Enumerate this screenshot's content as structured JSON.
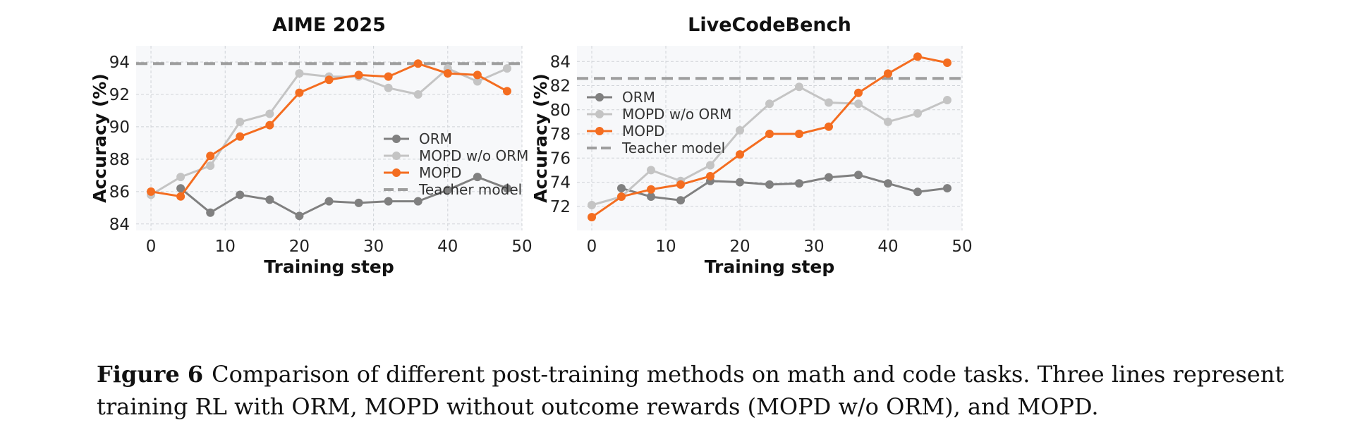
{
  "chart_data": [
    {
      "type": "line",
      "title": "AIME 2025",
      "xlabel": "Training step",
      "ylabel": "Accuracy (%)",
      "xlim": [
        -2,
        50
      ],
      "ylim": [
        83.6,
        95
      ],
      "xticks": [
        0,
        10,
        20,
        30,
        40,
        50
      ],
      "yticks": [
        84,
        86,
        88,
        90,
        92,
        94
      ],
      "grid": true,
      "legend_position": "center-right",
      "teacher": {
        "name": "Teacher model",
        "value": 93.9,
        "color": "#9e9e9e"
      },
      "series": [
        {
          "name": "ORM",
          "color": "#808080",
          "x": [
            4,
            8,
            12,
            16,
            20,
            24,
            28,
            32,
            36,
            40,
            44,
            48
          ],
          "y": [
            86.2,
            84.7,
            85.8,
            85.5,
            84.5,
            85.4,
            85.3,
            85.4,
            85.4,
            86.1,
            86.9,
            86.2
          ]
        },
        {
          "name": "MOPD w/o ORM",
          "color": "#c4c4c4",
          "x": [
            0,
            4,
            8,
            12,
            16,
            20,
            24,
            28,
            32,
            36,
            40,
            44,
            48
          ],
          "y": [
            85.8,
            86.9,
            87.6,
            90.3,
            90.8,
            93.3,
            93.1,
            93.1,
            92.4,
            92.0,
            93.6,
            92.8,
            93.6
          ]
        },
        {
          "name": "MOPD",
          "color": "#f46d20",
          "x": [
            0,
            4,
            8,
            12,
            16,
            20,
            24,
            28,
            32,
            36,
            40,
            44,
            48
          ],
          "y": [
            86.0,
            85.7,
            88.2,
            89.4,
            90.1,
            92.1,
            92.9,
            93.2,
            93.1,
            93.9,
            93.3,
            93.2,
            92.2
          ]
        }
      ]
    },
    {
      "type": "line",
      "title": "LiveCodeBench",
      "xlabel": "Training step",
      "ylabel": "Accuracy (%)",
      "xlim": [
        -2,
        50
      ],
      "ylim": [
        70,
        85.3
      ],
      "xticks": [
        0,
        10,
        20,
        30,
        40,
        50
      ],
      "yticks": [
        72,
        74,
        76,
        78,
        80,
        82,
        84
      ],
      "grid": true,
      "legend_position": "upper-left",
      "teacher": {
        "name": "Teacher model",
        "value": 82.6,
        "color": "#9e9e9e"
      },
      "series": [
        {
          "name": "ORM",
          "color": "#808080",
          "x": [
            4,
            8,
            12,
            16,
            20,
            24,
            28,
            32,
            36,
            40,
            44,
            48
          ],
          "y": [
            73.5,
            72.8,
            72.5,
            74.1,
            74.0,
            73.8,
            73.9,
            74.4,
            74.6,
            73.9,
            73.2,
            73.5
          ]
        },
        {
          "name": "MOPD w/o ORM",
          "color": "#c4c4c4",
          "x": [
            0,
            4,
            8,
            12,
            16,
            20,
            24,
            28,
            32,
            36,
            40,
            44,
            48
          ],
          "y": [
            72.1,
            72.8,
            75.0,
            74.1,
            75.4,
            78.3,
            80.5,
            81.9,
            80.6,
            80.5,
            79.0,
            79.7,
            80.8
          ]
        },
        {
          "name": "MOPD",
          "color": "#f46d20",
          "x": [
            0,
            4,
            8,
            12,
            16,
            20,
            24,
            28,
            32,
            36,
            40,
            44,
            48
          ],
          "y": [
            71.1,
            72.8,
            73.4,
            73.8,
            74.5,
            76.3,
            78.0,
            78.0,
            78.6,
            81.4,
            83.0,
            84.4,
            83.9
          ]
        }
      ]
    }
  ],
  "caption": {
    "label": "Figure 6",
    "text": "Comparison of different post-training methods on math and code tasks. Three lines represent training RL with ORM, MOPD without outcome rewards (MOPD w/o ORM), and MOPD."
  }
}
